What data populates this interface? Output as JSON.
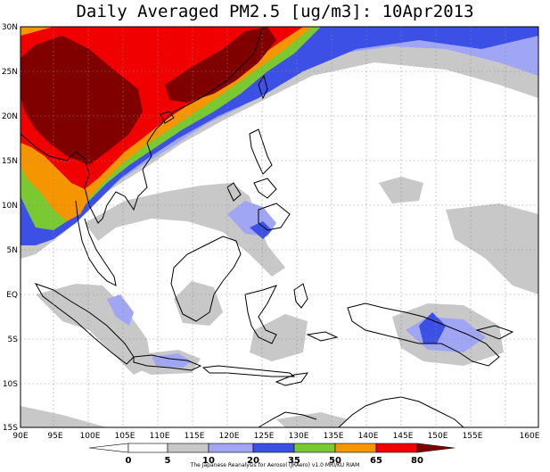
{
  "title": "Daily Averaged PM2.5 [ug/m3]: 10Apr2013",
  "lat_ticks": [
    "30N",
    "25N",
    "20N",
    "15N",
    "10N",
    "5N",
    "EQ",
    "5S",
    "10S",
    "15S"
  ],
  "lon_ticks": [
    "90E",
    "95E",
    "100E",
    "105E",
    "110E",
    "115E",
    "120E",
    "125E",
    "130E",
    "135E",
    "140E",
    "145E",
    "150E",
    "155E",
    "160E"
  ],
  "colorbar": {
    "labels": [
      "0",
      "5",
      "10",
      "20",
      "35",
      "50",
      "65",
      "80"
    ],
    "colors": [
      "#ffffff",
      "#ffffff",
      "#c8c8c8",
      "#a0a6f4",
      "#3c50e6",
      "#7ac832",
      "#f59600",
      "#f00000",
      "#800000"
    ]
  },
  "credit": "The Japanese Reanalysis for Aerosol (JRAero) v1.0 MRI/KU RIAM",
  "field_colors": {
    "gray": "#c8c8c8",
    "lightblue": "#a0a6f4",
    "blue": "#3c50e6",
    "green": "#7ac832",
    "orange": "#f59600",
    "red": "#f00000",
    "darkred": "#800000"
  }
}
